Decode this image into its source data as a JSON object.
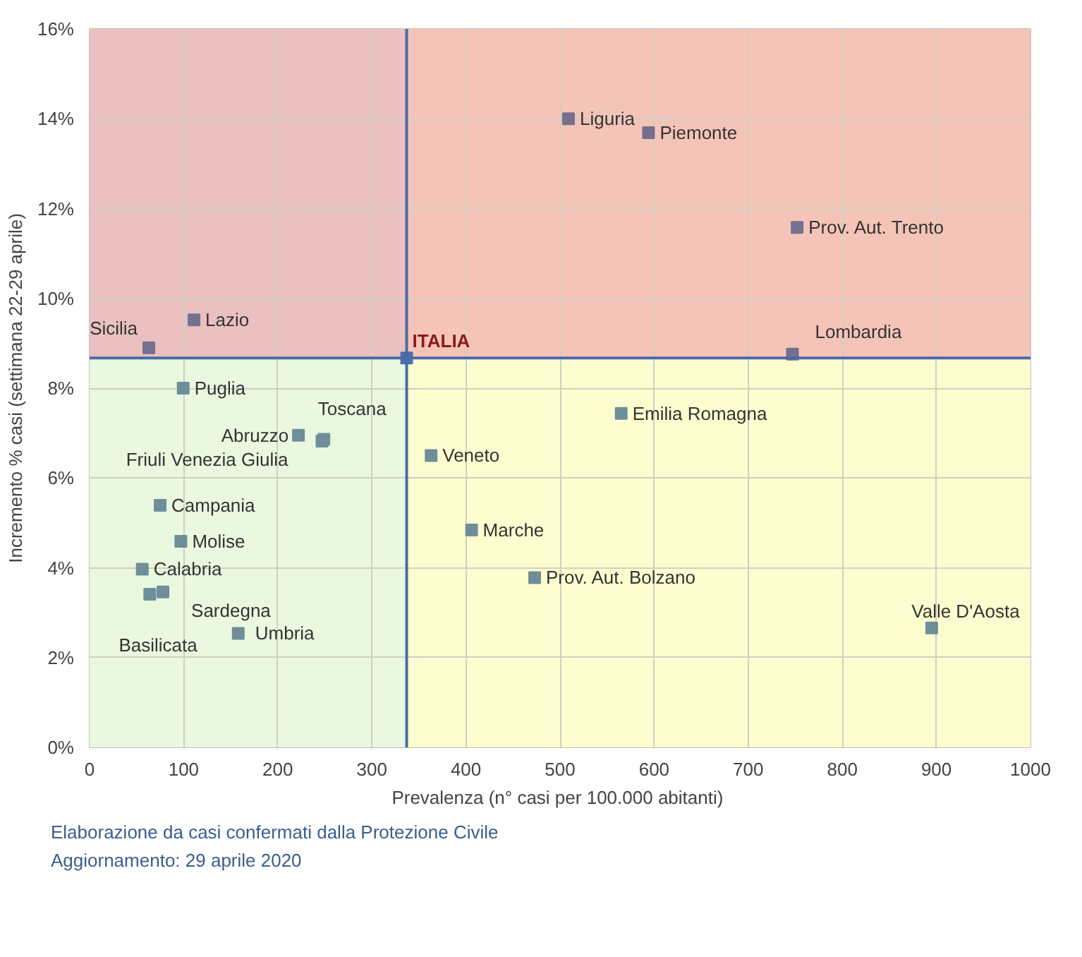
{
  "chart_data": {
    "type": "scatter",
    "xlabel": "Prevalenza  (n° casi per 100.000 abitanti)",
    "ylabel": "Incremento % casi (settimana 22-29 aprile)",
    "series": [
      {
        "color": "#76708f",
        "x": [
          509,
          594,
          752,
          747,
          111,
          63
        ],
        "values": [
          14.0,
          13.69,
          11.58,
          8.76,
          9.52,
          8.9
        ]
      },
      {
        "color": "#6e8f9a",
        "x": [
          99.5,
          222,
          249,
          247,
          75,
          97,
          56,
          64,
          78,
          158,
          565,
          363,
          406,
          473,
          895
        ],
        "values": [
          8.0,
          6.95,
          6.86,
          6.82,
          5.39,
          4.59,
          3.97,
          3.41,
          3.46,
          2.54,
          7.44,
          6.5,
          4.84,
          3.78,
          2.66
        ]
      },
      {
        "color": "#4a6fb0",
        "x": [
          337
        ],
        "values": [
          8.67
        ]
      }
    ],
    "marker": "square",
    "xlim": [
      0,
      1000
    ],
    "xticks": [
      0,
      100,
      200,
      300,
      400,
      500,
      600,
      700,
      800,
      900,
      1000
    ],
    "ylim": [
      0,
      16
    ],
    "yticks": [
      {
        "value": 0,
        "label": "0%"
      },
      {
        "value": 2,
        "label": "2%"
      },
      {
        "value": 4,
        "label": "4%"
      },
      {
        "value": 6,
        "label": "6%"
      },
      {
        "value": 8,
        "label": "8%"
      },
      {
        "value": 10,
        "label": "10%"
      },
      {
        "value": 12,
        "label": "12%"
      },
      {
        "value": 14,
        "label": "14%"
      },
      {
        "value": 16,
        "label": "16%"
      }
    ],
    "grid": true,
    "ref_lines": [
      {
        "axis": "x",
        "value": 337,
        "color": "#4a6aa8"
      },
      {
        "axis": "y",
        "value": 8.67,
        "color": "#4a6aa8"
      }
    ],
    "bands": [
      {
        "axis": "x",
        "from": 0,
        "to": 337,
        "color": "#e9f8de"
      },
      {
        "axis": "x",
        "from": 337,
        "to": 1000,
        "color": "#fefdd0"
      },
      {
        "axis": "y",
        "from": 8.67,
        "to": 16,
        "color": "#ea7e9b"
      }
    ],
    "annotations": [
      {
        "text": "ITALIA",
        "x": 337,
        "y": 8.67
      },
      {
        "text": "Liguria",
        "x": 509,
        "y": 14.0
      },
      {
        "text": "Piemonte",
        "x": 594,
        "y": 13.69
      },
      {
        "text": "Prov. Aut. Trento",
        "x": 752,
        "y": 11.58
      },
      {
        "text": "Lombardia",
        "x": 747,
        "y": 8.76
      },
      {
        "text": "Lazio",
        "x": 111,
        "y": 9.52
      },
      {
        "text": "Sicilia",
        "x": 63,
        "y": 8.9
      },
      {
        "text": "Puglia",
        "x": 99.5,
        "y": 8.0
      },
      {
        "text": "Abruzzo",
        "x": 222,
        "y": 6.95
      },
      {
        "text": "Toscana",
        "x": 249,
        "y": 6.86
      },
      {
        "text": "Friuli Venezia Giulia",
        "x": 247,
        "y": 6.82
      },
      {
        "text": "Campania",
        "x": 75,
        "y": 5.39
      },
      {
        "text": "Molise",
        "x": 97,
        "y": 4.59
      },
      {
        "text": "Calabria",
        "x": 56,
        "y": 3.97
      },
      {
        "text": "Basilicata",
        "x": 64,
        "y": 3.41
      },
      {
        "text": "Sardegna",
        "x": 78,
        "y": 3.46
      },
      {
        "text": "Umbria",
        "x": 158,
        "y": 2.54
      },
      {
        "text": "Emilia Romagna",
        "x": 565,
        "y": 7.44
      },
      {
        "text": "Veneto",
        "x": 363,
        "y": 6.5
      },
      {
        "text": "Marche",
        "x": 406,
        "y": 4.84
      },
      {
        "text": "Prov. Aut. Bolzano",
        "x": 473,
        "y": 3.78
      },
      {
        "text": "Valle D'Aosta",
        "x": 895,
        "y": 2.66
      },
      "Elaborazione da casi confermati dalla Protezione Civile",
      "Aggiornamento: 29 aprile 2020"
    ]
  }
}
